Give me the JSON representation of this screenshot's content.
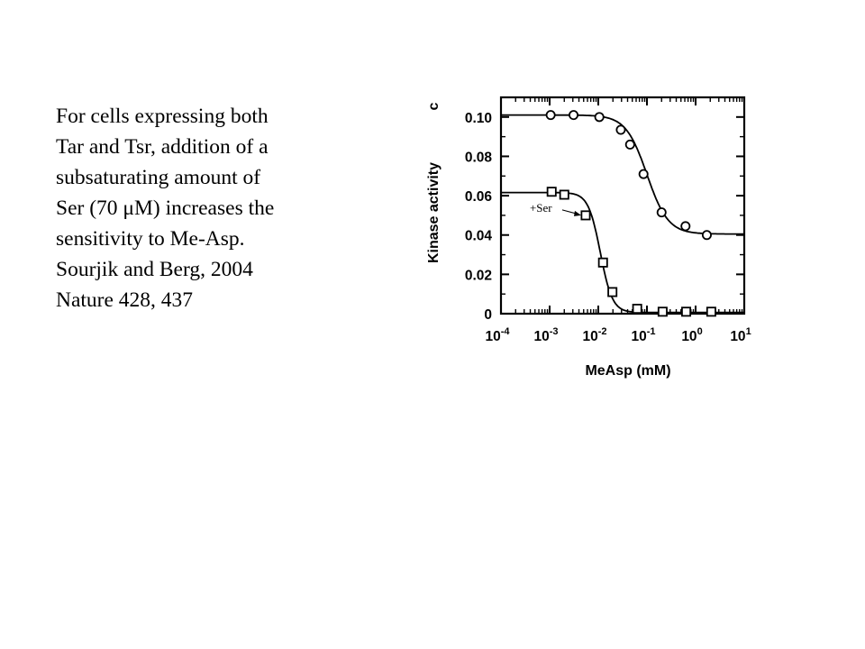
{
  "caption": {
    "lines": [
      "For cells expressing both",
      "Tar and Tsr, addition of a",
      "subsaturating amount of",
      "Ser (70 μM) increases the",
      "sensitivity to Me-Asp.",
      "Sourjik and Berg, 2004",
      "Nature 428, 437"
    ]
  },
  "chart_data": {
    "type": "line",
    "panel_label": "c",
    "xlabel": "MeAsp (mM)",
    "ylabel": "Kinase activity",
    "x_scale": "log",
    "xlim": [
      0.0001,
      10
    ],
    "ylim": [
      0,
      0.11
    ],
    "x_ticks": [
      {
        "value": 0.0001,
        "base": "10",
        "exp": "-4"
      },
      {
        "value": 0.001,
        "base": "10",
        "exp": "-3"
      },
      {
        "value": 0.01,
        "base": "10",
        "exp": "-2"
      },
      {
        "value": 0.1,
        "base": "10",
        "exp": "-1"
      },
      {
        "value": 1,
        "base": "10",
        "exp": "0"
      },
      {
        "value": 10,
        "base": "10",
        "exp": "1"
      }
    ],
    "y_ticks": [
      {
        "value": 0,
        "label": "0"
      },
      {
        "value": 0.02,
        "label": "0.02"
      },
      {
        "value": 0.04,
        "label": "0.04"
      },
      {
        "value": 0.06,
        "label": "0.06"
      },
      {
        "value": 0.08,
        "label": "0.08"
      },
      {
        "value": 0.1,
        "label": "0.10"
      }
    ],
    "series": [
      {
        "marker": "circle",
        "points": [
          [
            0.00105,
            0.101
          ],
          [
            0.0031,
            0.101
          ],
          [
            0.0105,
            0.1
          ],
          [
            0.029,
            0.0935
          ],
          [
            0.045,
            0.086
          ],
          [
            0.085,
            0.071
          ],
          [
            0.2,
            0.0515
          ],
          [
            0.62,
            0.0445
          ],
          [
            1.7,
            0.04
          ]
        ],
        "fit": {
          "top": 0.101,
          "bottom": 0.0405,
          "ec50": 0.1,
          "hill": 2
        }
      },
      {
        "marker": "square",
        "annotation": "+Ser",
        "points": [
          [
            0.0011,
            0.062
          ],
          [
            0.002,
            0.0605
          ],
          [
            0.0055,
            0.05
          ],
          [
            0.0125,
            0.026
          ],
          [
            0.0195,
            0.011
          ],
          [
            0.063,
            0.0025
          ],
          [
            0.21,
            0.001
          ],
          [
            0.64,
            0.001
          ],
          [
            2.1,
            0.001
          ]
        ],
        "fit": {
          "top": 0.0616,
          "bottom": 0.0006,
          "ec50": 0.011,
          "hill": 3.5
        }
      }
    ]
  }
}
